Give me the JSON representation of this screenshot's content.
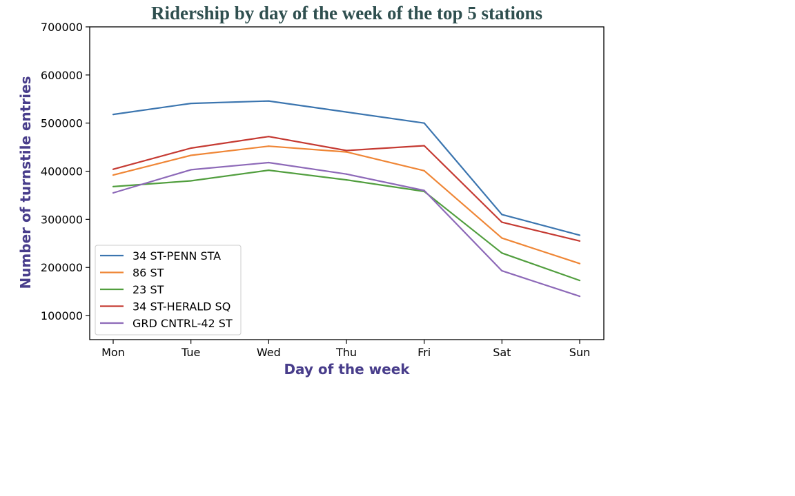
{
  "chart_data": {
    "type": "line",
    "title": "Ridership by day of the week of the top 5 stations",
    "xlabel": "Day of the week",
    "ylabel": "Number of turnstile entries",
    "categories": [
      "Mon",
      "Tue",
      "Wed",
      "Thu",
      "Fri",
      "Sat",
      "Sun"
    ],
    "ylim": [
      50000,
      700000
    ],
    "yticks": [
      100000,
      200000,
      300000,
      400000,
      500000,
      600000,
      700000
    ],
    "grid": false,
    "legend_position": "lower-left",
    "series": [
      {
        "name": "34 ST-PENN STA",
        "color": "#3b75af",
        "values": [
          518000,
          541000,
          546000,
          523000,
          500000,
          310000,
          267000
        ]
      },
      {
        "name": "86 ST",
        "color": "#ef8636",
        "values": [
          392000,
          433000,
          452000,
          440000,
          401000,
          261000,
          208000
        ]
      },
      {
        "name": "23 ST",
        "color": "#519e3e",
        "values": [
          368000,
          380000,
          402000,
          382000,
          358000,
          230000,
          173000
        ]
      },
      {
        "name": "34 ST-HERALD SQ",
        "color": "#c53a32",
        "values": [
          404000,
          448000,
          472000,
          443000,
          453000,
          294000,
          255000
        ]
      },
      {
        "name": "GRD CNTRL-42 ST",
        "color": "#8d69b8",
        "values": [
          355000,
          403000,
          418000,
          394000,
          360000,
          193000,
          140000
        ]
      }
    ]
  }
}
